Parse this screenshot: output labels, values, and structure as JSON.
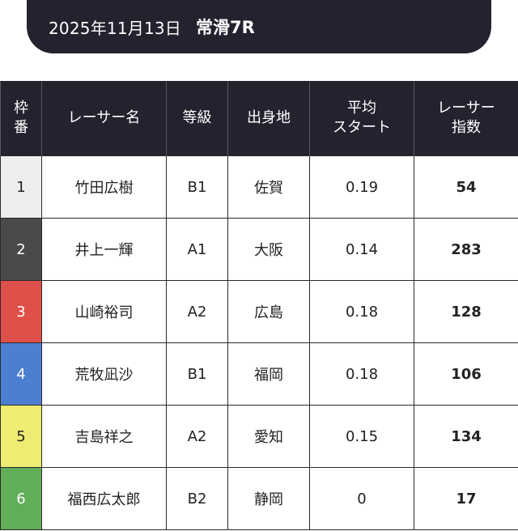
{
  "header": {
    "date": "2025年11月13日",
    "race": "常滑7R"
  },
  "table": {
    "columns": {
      "frame": [
        "枠",
        "番"
      ],
      "name": "レーサー名",
      "grade": "等級",
      "origin": "出身地",
      "avg_start": [
        "平均",
        "スタート"
      ],
      "index": [
        "レーサー",
        "指数"
      ]
    },
    "rows": [
      {
        "frame": "1",
        "name": "竹田広樹",
        "grade": "B1",
        "origin": "佐賀",
        "avg_start": "0.19",
        "index": "54"
      },
      {
        "frame": "2",
        "name": "井上一輝",
        "grade": "A1",
        "origin": "大阪",
        "avg_start": "0.14",
        "index": "283"
      },
      {
        "frame": "3",
        "name": "山崎裕司",
        "grade": "A2",
        "origin": "広島",
        "avg_start": "0.18",
        "index": "128"
      },
      {
        "frame": "4",
        "name": "荒牧凪沙",
        "grade": "B1",
        "origin": "福岡",
        "avg_start": "0.18",
        "index": "106"
      },
      {
        "frame": "5",
        "name": "吉島祥之",
        "grade": "A2",
        "origin": "愛知",
        "avg_start": "0.15",
        "index": "134"
      },
      {
        "frame": "6",
        "name": "福西広太郎",
        "grade": "B2",
        "origin": "静岡",
        "avg_start": "0",
        "index": "17"
      }
    ],
    "frame_colors": [
      {
        "bg": "#eeeeee",
        "fg": "#222222"
      },
      {
        "bg": "#4a4a4a",
        "fg": "#ffffff"
      },
      {
        "bg": "#e0504a",
        "fg": "#ffffff"
      },
      {
        "bg": "#4d7fd0",
        "fg": "#ffffff"
      },
      {
        "bg": "#eeec72",
        "fg": "#222222"
      },
      {
        "bg": "#62ad58",
        "fg": "#ffffff"
      }
    ]
  }
}
